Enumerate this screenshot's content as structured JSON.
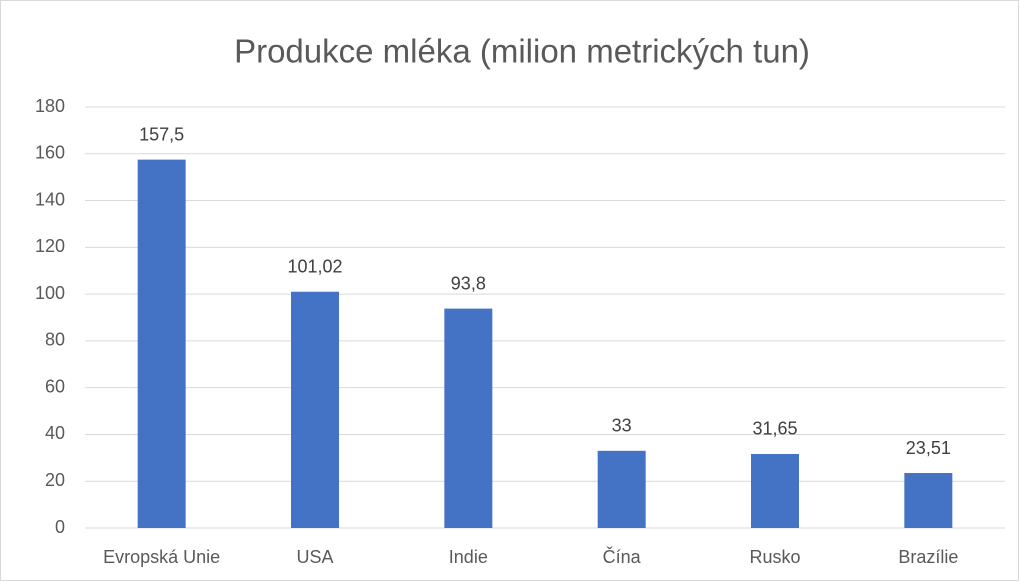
{
  "chart_data": {
    "type": "bar",
    "title": "Produkce mléka (milion metrických tun)",
    "categories": [
      "Evropská Unie",
      "USA",
      "Indie",
      "Čína",
      "Rusko",
      "Brazílie"
    ],
    "values": [
      157.5,
      101.02,
      93.8,
      33,
      31.65,
      23.51
    ],
    "value_labels": [
      "157,5",
      "101,02",
      "93,8",
      "33",
      "31,65",
      "23,51"
    ],
    "color": "#4472c4",
    "ylim": [
      0,
      180
    ],
    "yticks": [
      0,
      20,
      40,
      60,
      80,
      100,
      120,
      140,
      160,
      180
    ],
    "grid": true
  }
}
